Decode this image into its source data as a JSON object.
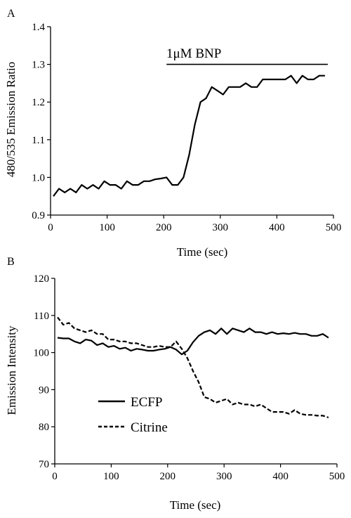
{
  "chart_data": [
    {
      "panel": "A",
      "type": "line",
      "xlabel": "Time (sec)",
      "ylabel": "480/535 Emission Ratio",
      "xlim": [
        0,
        500
      ],
      "ylim": [
        0.9,
        1.4
      ],
      "xticks": [
        0,
        100,
        200,
        300,
        400,
        500
      ],
      "yticks": [
        0.9,
        1.0,
        1.1,
        1.2,
        1.3,
        1.4
      ],
      "ytick_labels": [
        "0.9",
        "1.0",
        "1.1",
        "1.2",
        "1.3",
        "1.4"
      ],
      "grid": false,
      "annotation": {
        "text": "1μM BNP",
        "x_start": 205,
        "x_end": 490,
        "y": 1.3
      },
      "series": [
        {
          "x": [
            5,
            15,
            25,
            35,
            45,
            55,
            65,
            75,
            85,
            95,
            105,
            115,
            125,
            135,
            145,
            155,
            165,
            175,
            185,
            195,
            205,
            215,
            225,
            235,
            245,
            255,
            265,
            275,
            285,
            295,
            305,
            315,
            325,
            335,
            345,
            355,
            365,
            375,
            385,
            395,
            405,
            415,
            425,
            435,
            445,
            455,
            465,
            475,
            485
          ],
          "values": [
            0.95,
            0.97,
            0.96,
            0.97,
            0.96,
            0.98,
            0.97,
            0.98,
            0.97,
            0.99,
            0.98,
            0.98,
            0.97,
            0.99,
            0.98,
            0.98,
            0.99,
            0.99,
            0.995,
            0.997,
            1.0,
            0.98,
            0.98,
            1.0,
            1.06,
            1.14,
            1.2,
            1.21,
            1.24,
            1.23,
            1.22,
            1.24,
            1.24,
            1.24,
            1.25,
            1.24,
            1.24,
            1.26,
            1.26,
            1.26,
            1.26,
            1.26,
            1.27,
            1.25,
            1.27,
            1.26,
            1.26,
            1.27,
            1.27
          ]
        }
      ]
    },
    {
      "panel": "B",
      "type": "line",
      "xlabel": "Time (sec)",
      "ylabel": "Emission Intensity",
      "xlim": [
        0,
        500
      ],
      "ylim": [
        70,
        120
      ],
      "xticks": [
        0,
        100,
        200,
        300,
        400,
        500
      ],
      "yticks": [
        70,
        80,
        90,
        100,
        110,
        120
      ],
      "ytick_labels": [
        "70",
        "80",
        "90",
        "100",
        "110",
        "120"
      ],
      "grid": false,
      "legend_position": "lower-left",
      "series": [
        {
          "name": "ECFP",
          "style": "solid",
          "x": [
            5,
            15,
            25,
            35,
            45,
            55,
            65,
            75,
            85,
            95,
            105,
            115,
            125,
            135,
            145,
            155,
            165,
            175,
            185,
            195,
            205,
            215,
            225,
            235,
            245,
            255,
            265,
            275,
            285,
            295,
            305,
            315,
            325,
            335,
            345,
            355,
            365,
            375,
            385,
            395,
            405,
            415,
            425,
            435,
            445,
            455,
            465,
            475,
            485
          ],
          "values": [
            104,
            103.8,
            103.8,
            103,
            102.5,
            103.5,
            103.2,
            102,
            102.5,
            101.5,
            101.8,
            101,
            101.3,
            100.5,
            101,
            100.8,
            100.5,
            100.5,
            100.8,
            101,
            101.5,
            100.8,
            99.5,
            100.5,
            102.8,
            104.5,
            105.5,
            106,
            105,
            106.5,
            105,
            106.5,
            106,
            105.5,
            106.5,
            105.5,
            105.5,
            105,
            105.5,
            105,
            105.2,
            105,
            105.3,
            105,
            105,
            104.5,
            104.5,
            105,
            104
          ]
        },
        {
          "name": "Citrine",
          "style": "dashed",
          "x": [
            5,
            15,
            25,
            35,
            45,
            55,
            65,
            75,
            85,
            95,
            105,
            115,
            125,
            135,
            145,
            155,
            165,
            175,
            185,
            195,
            205,
            215,
            225,
            235,
            245,
            255,
            265,
            275,
            285,
            295,
            305,
            315,
            325,
            335,
            345,
            355,
            365,
            375,
            385,
            395,
            405,
            415,
            425,
            435,
            445,
            455,
            465,
            475,
            485
          ],
          "values": [
            109.5,
            107.5,
            108,
            106.5,
            106,
            105.5,
            106,
            105,
            105,
            103.5,
            103.5,
            103,
            103,
            102.5,
            102.5,
            102,
            101.5,
            101.5,
            101.8,
            101.5,
            101.5,
            103,
            101,
            98.5,
            95,
            92,
            88,
            87.5,
            86.5,
            87,
            87.5,
            86,
            86.5,
            86,
            86,
            85.5,
            86,
            85,
            84,
            84,
            84,
            83.5,
            84.5,
            83.5,
            83.2,
            83.2,
            83,
            83,
            82.5
          ]
        }
      ]
    }
  ]
}
